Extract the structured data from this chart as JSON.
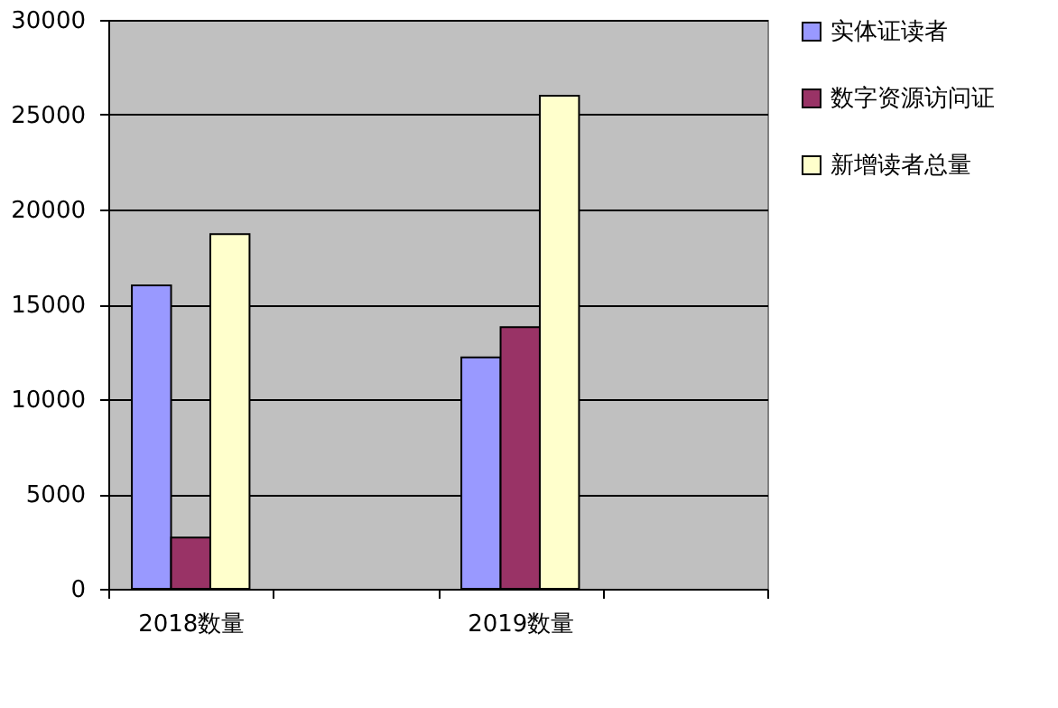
{
  "chart_data": {
    "type": "bar",
    "categories": [
      "2018数量",
      null,
      "2019数量",
      null
    ],
    "series": [
      {
        "name": "实体证读者",
        "color": "#9999ff",
        "values": [
          16000,
          null,
          12200,
          null
        ]
      },
      {
        "name": "数字资源访问证",
        "color": "#993366",
        "values": [
          2700,
          null,
          13800,
          null
        ]
      },
      {
        "name": "新增读者总量",
        "color": "#ffffcc",
        "values": [
          18700,
          null,
          26000,
          null
        ]
      }
    ],
    "ylim": [
      0,
      30000
    ],
    "yticks": [
      0,
      5000,
      10000,
      15000,
      20000,
      25000,
      30000
    ],
    "grid": "y",
    "legend": "right"
  }
}
